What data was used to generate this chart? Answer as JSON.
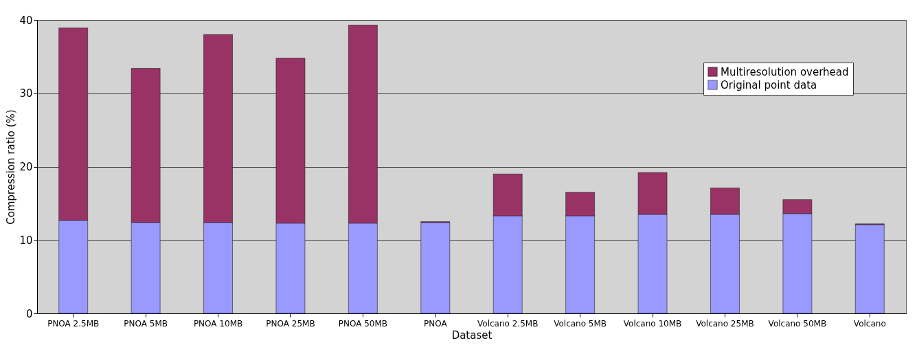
{
  "chart_data": {
    "type": "bar",
    "stacked": true,
    "xlabel": "Dataset",
    "ylabel": "Compression ratio (%)",
    "categories": [
      "PNOA 2.5MB",
      "PNOA 5MB",
      "PNOA 10MB",
      "PNOA 25MB",
      "PNOA 50MB",
      "PNOA",
      "Volcano 2.5MB",
      "Volcano 5MB",
      "Volcano 10MB",
      "Volcano 25MB",
      "Volcano 50MB",
      "Volcano"
    ],
    "series": [
      {
        "name": "Original point data",
        "color": "#9999ff",
        "values": [
          12.7,
          12.4,
          12.4,
          12.3,
          12.3,
          12.4,
          13.3,
          13.3,
          13.5,
          13.5,
          13.6,
          12.1
        ]
      },
      {
        "name": "Multiresolution overhead",
        "color": "#993366",
        "values": [
          26.2,
          21.0,
          25.6,
          22.5,
          27.0,
          0.1,
          5.7,
          3.2,
          5.7,
          3.6,
          1.9,
          0.1
        ]
      }
    ],
    "ylim": [
      0,
      40
    ],
    "yticks": [
      0,
      10,
      20,
      30,
      40
    ],
    "grid": "y",
    "legend": "top right"
  }
}
